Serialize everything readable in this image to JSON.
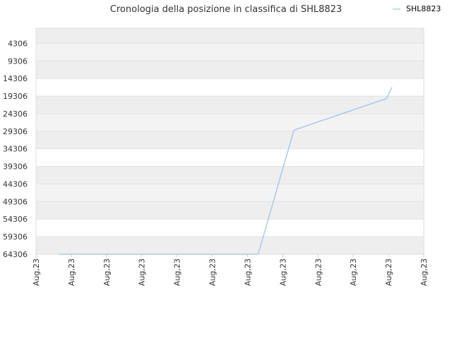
{
  "chart_data": {
    "type": "line",
    "title": "Cronologia della posizione in classifica di SHL8823",
    "xlabel": "",
    "ylabel": "",
    "y_inverted": true,
    "ylim": [
      64306,
      0
    ],
    "y_ticks": [
      4306,
      9306,
      14306,
      19306,
      24306,
      29306,
      34306,
      39306,
      44306,
      49306,
      54306,
      59306,
      64306
    ],
    "x_tick_labels": [
      "Aug,23",
      "Aug,23",
      "Aug,23",
      "Aug,23",
      "Aug,23",
      "Aug,23",
      "Aug,23",
      "Aug,23",
      "Aug,23",
      "Aug,23",
      "Aug,23",
      "Aug,23"
    ],
    "grid": true,
    "legend_position": "top-right",
    "series": [
      {
        "name": "SHL8823",
        "color": "#99c5ec",
        "x": [
          0.06,
          0.573,
          0.665,
          0.904,
          0.918
        ],
        "values": [
          64306,
          64306,
          29000,
          20000,
          16800
        ]
      }
    ]
  }
}
